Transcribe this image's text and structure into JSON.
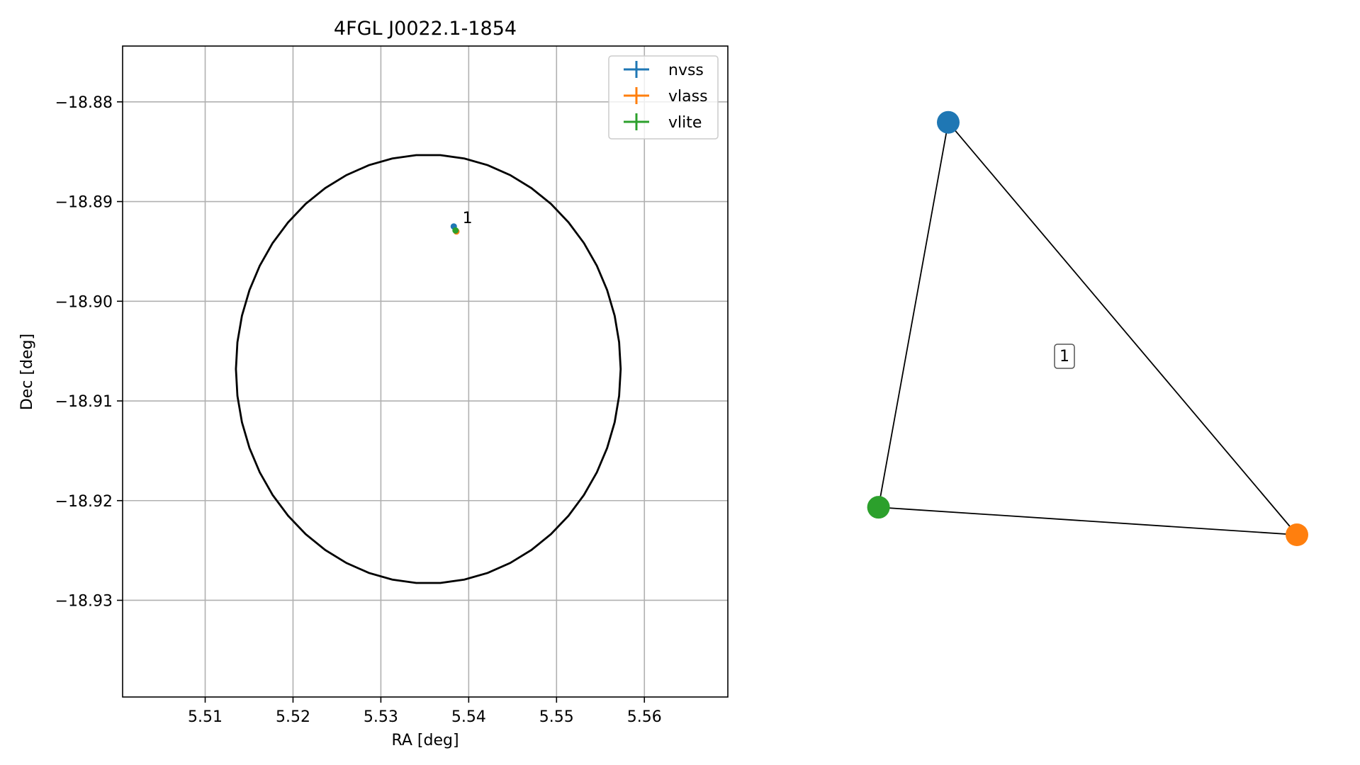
{
  "chart_data": [
    {
      "type": "scatter",
      "title": "4FGL J0022.1-1854",
      "xlabel": "RA [deg]",
      "ylabel": "Dec [deg]",
      "xlim": [
        5.5006,
        5.5695
      ],
      "ylim": [
        -18.9397,
        -18.8744
      ],
      "xticks": [
        5.51,
        5.52,
        5.53,
        5.54,
        5.55,
        5.56
      ],
      "xtick_labels": [
        "5.51",
        "5.52",
        "5.53",
        "5.54",
        "5.55",
        "5.56"
      ],
      "yticks": [
        -18.88,
        -18.89,
        -18.9,
        -18.91,
        -18.92,
        -18.93
      ],
      "ytick_labels": [
        "−18.88",
        "−18.89",
        "−18.90",
        "−18.91",
        "−18.92",
        "−18.93"
      ],
      "grid": true,
      "legend_position": "top-right",
      "series": [
        {
          "name": "nvss",
          "color": "#1f77b4",
          "x": [
            5.5383
          ],
          "y": [
            -18.8925
          ]
        },
        {
          "name": "vlass",
          "color": "#ff7f0e",
          "x": [
            5.5386
          ],
          "y": [
            -18.893
          ]
        },
        {
          "name": "vlite",
          "color": "#2ca02c",
          "x": [
            5.5385
          ],
          "y": [
            -18.8929
          ]
        }
      ],
      "ellipse": {
        "center_x": 5.5354,
        "center_y": -18.9068,
        "radius_x": 0.0219,
        "radius_y": 0.0215,
        "color": "#000000"
      },
      "annotations": [
        {
          "text": "1",
          "x": 5.5393,
          "y": -18.8916
        }
      ]
    },
    {
      "type": "network",
      "nodes": [
        {
          "id": "nvss",
          "color": "#1f77b4",
          "x": 0.2,
          "y": 0.9
        },
        {
          "id": "vlass",
          "color": "#ff7f0e",
          "x": 1.0,
          "y": 0.0
        },
        {
          "id": "vlite",
          "color": "#2ca02c",
          "x": 0.04,
          "y": 0.06
        }
      ],
      "edges": [
        [
          "nvss",
          "vlass"
        ],
        [
          "nvss",
          "vlite"
        ],
        [
          "vlite",
          "vlass"
        ]
      ],
      "edge_label": "1"
    }
  ]
}
